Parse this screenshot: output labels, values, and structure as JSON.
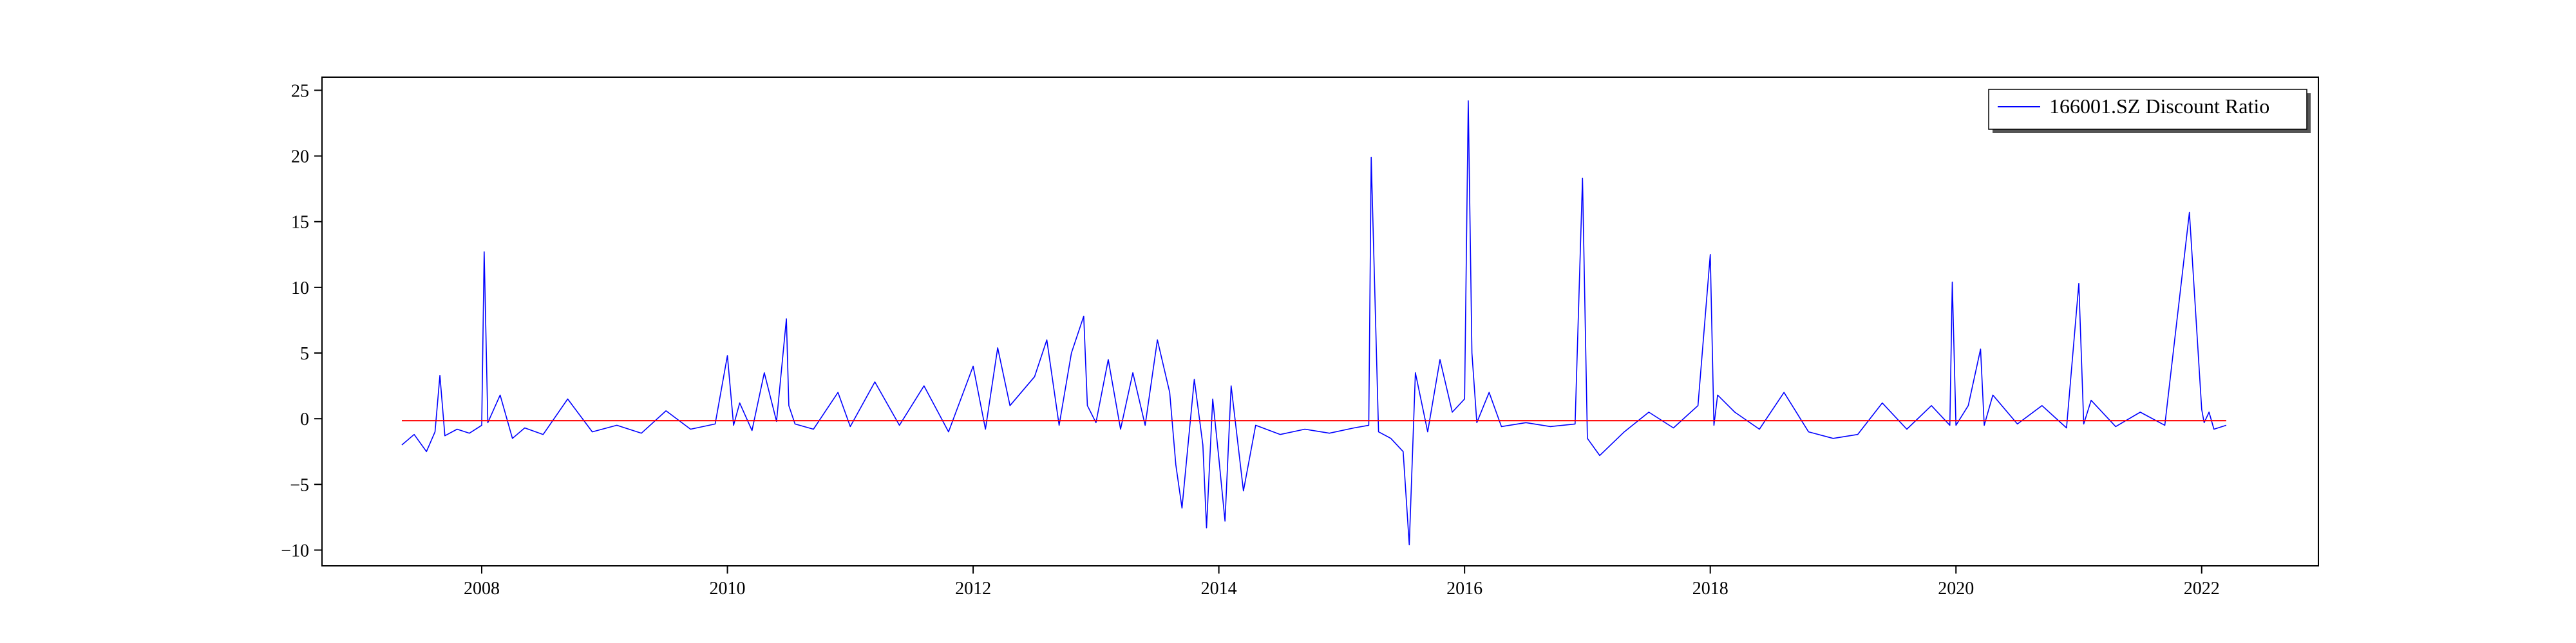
{
  "chart_data": {
    "type": "line",
    "title": "",
    "xlabel": "",
    "ylabel": "",
    "xlim": [
      2006.7,
      2022.95
    ],
    "ylim": [
      -11.2,
      26.0
    ],
    "xticks": [
      2008,
      2010,
      2012,
      2014,
      2016,
      2018,
      2020,
      2022
    ],
    "xtick_labels": [
      "2008",
      "2010",
      "2012",
      "2014",
      "2016",
      "2018",
      "2020",
      "2022"
    ],
    "yticks": [
      -10,
      -5,
      0,
      5,
      10,
      15,
      20,
      25
    ],
    "ytick_labels": [
      "−10",
      "−5",
      "0",
      "5",
      "10",
      "15",
      "20",
      "25"
    ],
    "grid": false,
    "legend_position": "upper right",
    "series": [
      {
        "name": "166001.SZ Discount Ratio",
        "color": "#0000ff",
        "x": [
          2007.35,
          2007.45,
          2007.55,
          2007.62,
          2007.66,
          2007.7,
          2007.8,
          2007.9,
          2008.0,
          2008.02,
          2008.05,
          2008.15,
          2008.25,
          2008.35,
          2008.5,
          2008.7,
          2008.9,
          2009.1,
          2009.3,
          2009.5,
          2009.7,
          2009.9,
          2010.0,
          2010.05,
          2010.1,
          2010.2,
          2010.3,
          2010.4,
          2010.48,
          2010.5,
          2010.55,
          2010.7,
          2010.9,
          2011.0,
          2011.2,
          2011.4,
          2011.6,
          2011.8,
          2012.0,
          2012.1,
          2012.2,
          2012.3,
          2012.5,
          2012.6,
          2012.7,
          2012.8,
          2012.9,
          2012.93,
          2013.0,
          2013.1,
          2013.2,
          2013.3,
          2013.4,
          2013.5,
          2013.6,
          2013.65,
          2013.7,
          2013.8,
          2013.87,
          2013.9,
          2013.95,
          2014.0,
          2014.05,
          2014.1,
          2014.2,
          2014.3,
          2014.5,
          2014.7,
          2014.9,
          2015.1,
          2015.22,
          2015.24,
          2015.3,
          2015.4,
          2015.5,
          2015.55,
          2015.6,
          2015.7,
          2015.8,
          2015.9,
          2016.0,
          2016.03,
          2016.06,
          2016.1,
          2016.2,
          2016.3,
          2016.5,
          2016.7,
          2016.9,
          2016.96,
          2017.0,
          2017.1,
          2017.3,
          2017.5,
          2017.7,
          2017.9,
          2018.0,
          2018.03,
          2018.06,
          2018.2,
          2018.4,
          2018.6,
          2018.8,
          2019.0,
          2019.2,
          2019.4,
          2019.6,
          2019.8,
          2019.95,
          2019.97,
          2020.0,
          2020.1,
          2020.2,
          2020.23,
          2020.3,
          2020.5,
          2020.7,
          2020.9,
          2021.0,
          2021.04,
          2021.1,
          2021.3,
          2021.5,
          2021.7,
          2021.9,
          2022.0,
          2022.02,
          2022.06,
          2022.1,
          2022.2
        ],
        "y": [
          -2.0,
          -1.2,
          -2.5,
          -1.0,
          3.3,
          -1.3,
          -0.8,
          -1.1,
          -0.5,
          12.7,
          -0.3,
          1.8,
          -1.5,
          -0.7,
          -1.2,
          1.5,
          -1.0,
          -0.5,
          -1.1,
          0.6,
          -0.8,
          -0.4,
          4.8,
          -0.5,
          1.2,
          -0.9,
          3.5,
          -0.2,
          7.6,
          1.0,
          -0.4,
          -0.8,
          2.0,
          -0.6,
          2.8,
          -0.5,
          2.5,
          -1.0,
          4.0,
          -0.8,
          5.4,
          1.0,
          3.2,
          6.0,
          -0.5,
          5.0,
          7.8,
          1.0,
          -0.3,
          4.5,
          -0.8,
          3.5,
          -0.5,
          6.0,
          2.0,
          -3.5,
          -6.8,
          3.0,
          -2.0,
          -8.3,
          1.5,
          -3.0,
          -7.8,
          2.5,
          -5.5,
          -0.5,
          -1.2,
          -0.8,
          -1.1,
          -0.7,
          -0.5,
          19.9,
          -1.0,
          -1.5,
          -2.5,
          -9.6,
          3.5,
          -1.0,
          4.5,
          0.5,
          1.5,
          24.2,
          5.0,
          -0.3,
          2.0,
          -0.6,
          -0.3,
          -0.6,
          -0.4,
          18.3,
          -1.5,
          -2.8,
          -1.0,
          0.5,
          -0.7,
          1.0,
          12.5,
          -0.5,
          1.8,
          0.5,
          -0.8,
          2.0,
          -1.0,
          -1.5,
          -1.2,
          1.2,
          -0.8,
          1.0,
          -0.5,
          10.4,
          -0.5,
          1.0,
          5.3,
          -0.5,
          1.8,
          -0.4,
          1.0,
          -0.7,
          10.3,
          -0.4,
          1.4,
          -0.6,
          0.5,
          -0.5,
          15.7,
          0.7,
          -0.3,
          0.5,
          -0.8,
          -0.5
        ]
      },
      {
        "name": "",
        "color": "#ff0000",
        "x": [
          2007.35,
          2022.2
        ],
        "y": [
          -0.15,
          -0.15
        ]
      }
    ]
  }
}
